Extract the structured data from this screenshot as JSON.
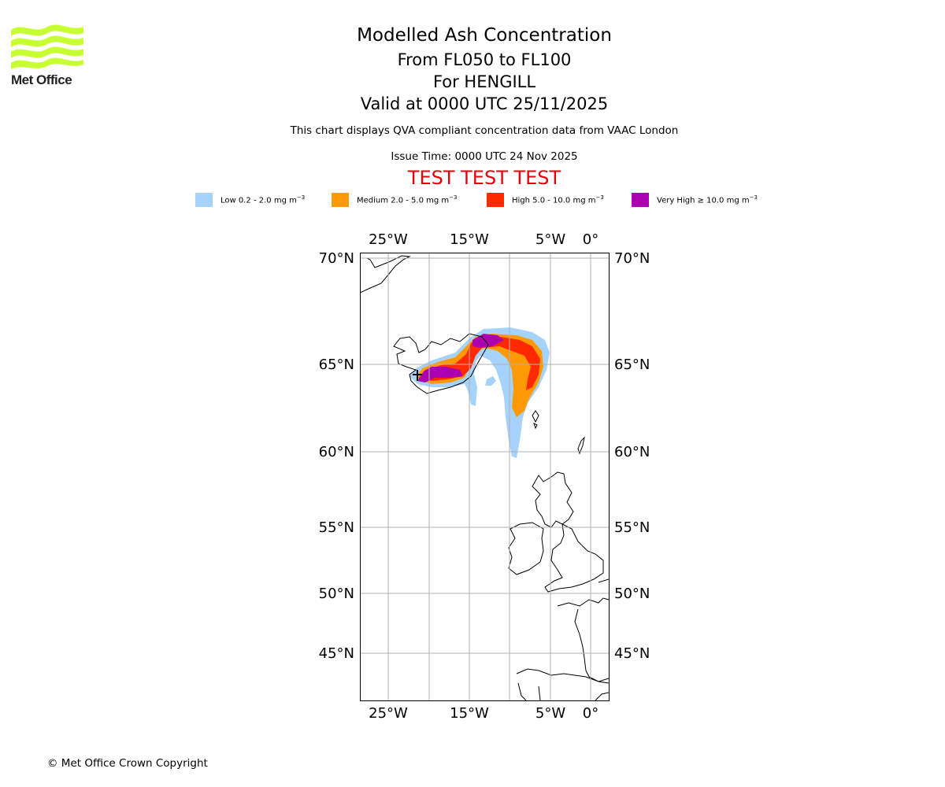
{
  "branding": {
    "logo_text": "Met Office",
    "logo_color": "#c7ff33"
  },
  "header": {
    "title": "Modelled Ash Concentration",
    "levels": "From FL050 to FL100",
    "location": "For HENGILL",
    "valid": "Valid at 0000 UTC 25/11/2025",
    "description": "This chart displays QVA compliant concentration data from VAAC London",
    "issue_time": "Issue Time: 0000 UTC 24 Nov 2025",
    "test_banner": "TEST TEST TEST"
  },
  "legend": [
    {
      "label": "Low 0.2 - 2.0 mg m",
      "exp": "−3",
      "color": "#a6d3fb"
    },
    {
      "label": "Medium 2.0 - 5.0 mg m",
      "exp": "−3",
      "color": "#ff9a06"
    },
    {
      "label": "High 5.0 - 10.0 mg m",
      "exp": "−3",
      "color": "#ff2a00"
    },
    {
      "label": "Very High  ≥  10.0 mg m",
      "exp": "−3",
      "color": "#aa00b0"
    }
  ],
  "map": {
    "longitude_ticks": [
      "25°W",
      "15°W",
      "5°W",
      "0°"
    ],
    "latitude_ticks": [
      "70°N",
      "65°N",
      "60°N",
      "55°N",
      "50°N",
      "45°N"
    ],
    "grid_color": "#b0b0b0"
  },
  "footer": {
    "copyright": "© Met Office Crown Copyright"
  }
}
